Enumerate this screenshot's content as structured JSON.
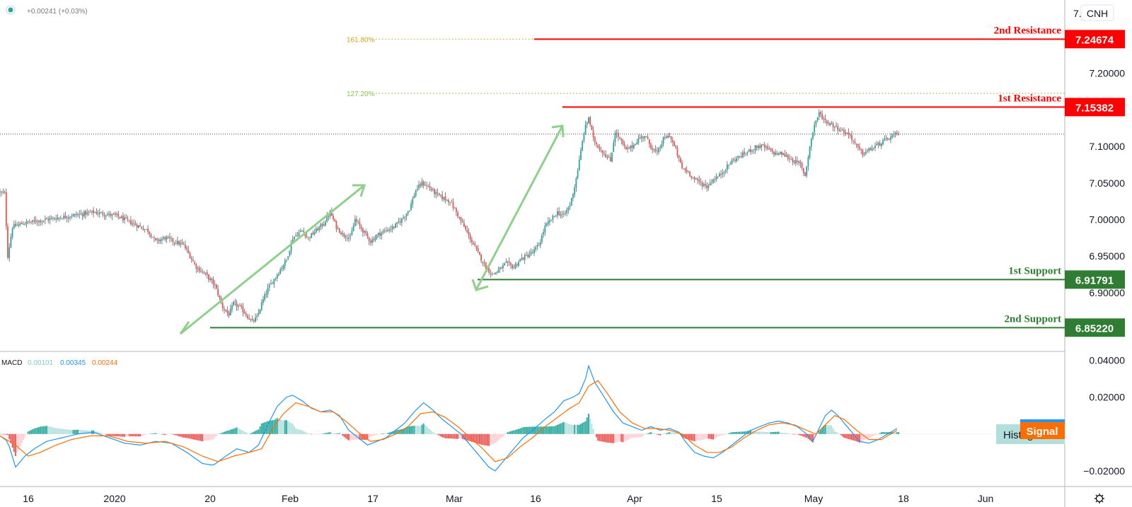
{
  "header": {
    "status_dot_color": "#26a69a",
    "change_text": "+0.00241 (+0.03%)"
  },
  "symbol_label": "CNH",
  "macd_panel": {
    "label": "MACD",
    "hist_value": "0.00101",
    "macd_value": "0.00345",
    "signal_value": "0.00244",
    "hist_tag": "Histogram",
    "signal_tag": "Signal",
    "colors": {
      "hist": "#7ecec6",
      "macd": "#2196f3",
      "signal": "#ff6d00"
    }
  },
  "settings_icon": "gear-icon",
  "chart_data": [
    {
      "type": "candlestick",
      "price_axis": {
        "ticks": [
          "7.20000",
          "7.15000",
          "7.10000",
          "7.05000",
          "7.00000",
          "6.95000",
          "6.90000"
        ],
        "top_partial_label": "7.",
        "ylim": [
          6.838,
          7.278
        ]
      },
      "x_axis": {
        "ticks": [
          "16",
          "2020",
          "20",
          "Feb",
          "17",
          "Mar",
          "16",
          "Apr",
          "15",
          "May",
          "18",
          "Jun"
        ]
      },
      "levels": [
        {
          "name": "2nd Resistance",
          "value": "7.24674",
          "price": 7.24674,
          "color": "#ff0000"
        },
        {
          "name": "1st Resistance",
          "value": "7.15382",
          "price": 7.15382,
          "color": "#ff0000"
        },
        {
          "name": "1st Support",
          "value": "6.91791",
          "price": 6.91791,
          "color": "#2e7d32"
        },
        {
          "name": "2nd Support",
          "value": "6.85220",
          "price": 6.8522,
          "color": "#2e7d32"
        }
      ],
      "fibonacci": [
        {
          "label": "161.80%",
          "price": 7.24674,
          "color": "#d4a017"
        },
        {
          "label": "127.20%",
          "price": 7.1725,
          "color": "#8bc34a"
        }
      ],
      "current_price": 7.117,
      "close_path": [
        [
          0,
          7.037
        ],
        [
          3,
          7.035
        ],
        [
          5,
          6.95
        ],
        [
          8,
          6.99
        ],
        [
          15,
          6.995
        ],
        [
          30,
          7.0
        ],
        [
          45,
          7.005
        ],
        [
          60,
          7.01
        ],
        [
          75,
          7.005
        ],
        [
          85,
          6.995
        ],
        [
          95,
          6.985
        ],
        [
          100,
          6.97
        ],
        [
          106,
          6.975
        ],
        [
          112,
          6.97
        ],
        [
          118,
          6.965
        ],
        [
          122,
          6.95
        ],
        [
          126,
          6.935
        ],
        [
          132,
          6.925
        ],
        [
          138,
          6.91
        ],
        [
          143,
          6.88
        ],
        [
          147,
          6.87
        ],
        [
          150,
          6.885
        ],
        [
          154,
          6.88
        ],
        [
          158,
          6.87
        ],
        [
          162,
          6.86
        ],
        [
          165,
          6.866
        ],
        [
          168,
          6.885
        ],
        [
          172,
          6.905
        ],
        [
          178,
          6.925
        ],
        [
          184,
          6.945
        ],
        [
          188,
          6.975
        ],
        [
          194,
          6.985
        ],
        [
          198,
          6.975
        ],
        [
          203,
          6.985
        ],
        [
          208,
          6.995
        ],
        [
          212,
          7.01
        ],
        [
          216,
          6.99
        ],
        [
          220,
          6.98
        ],
        [
          225,
          6.975
        ],
        [
          228,
          7.0
        ],
        [
          233,
          6.985
        ],
        [
          238,
          6.97
        ],
        [
          243,
          6.98
        ],
        [
          248,
          6.985
        ],
        [
          253,
          6.99
        ],
        [
          258,
          7.0
        ],
        [
          263,
          7.015
        ],
        [
          267,
          7.04
        ],
        [
          271,
          7.05
        ],
        [
          275,
          7.045
        ],
        [
          280,
          7.035
        ],
        [
          284,
          7.03
        ],
        [
          289,
          7.025
        ],
        [
          293,
          7.01
        ],
        [
          298,
          6.99
        ],
        [
          303,
          6.97
        ],
        [
          308,
          6.95
        ],
        [
          312,
          6.935
        ],
        [
          316,
          6.925
        ],
        [
          320,
          6.93
        ],
        [
          325,
          6.94
        ],
        [
          330,
          6.935
        ],
        [
          334,
          6.945
        ],
        [
          338,
          6.95
        ],
        [
          342,
          6.955
        ],
        [
          346,
          6.965
        ],
        [
          350,
          6.99
        ],
        [
          354,
          7.0
        ],
        [
          358,
          7.01
        ],
        [
          362,
          7.005
        ],
        [
          366,
          7.02
        ],
        [
          369,
          7.045
        ],
        [
          372,
          7.08
        ],
        [
          375,
          7.12
        ],
        [
          378,
          7.14
        ],
        [
          381,
          7.11
        ],
        [
          384,
          7.1
        ],
        [
          388,
          7.09
        ],
        [
          392,
          7.08
        ],
        [
          395,
          7.12
        ],
        [
          398,
          7.11
        ],
        [
          402,
          7.095
        ],
        [
          406,
          7.1
        ],
        [
          410,
          7.11
        ],
        [
          414,
          7.115
        ],
        [
          418,
          7.1
        ],
        [
          422,
          7.09
        ],
        [
          426,
          7.11
        ],
        [
          430,
          7.115
        ],
        [
          434,
          7.095
        ],
        [
          438,
          7.07
        ],
        [
          442,
          7.065
        ],
        [
          446,
          7.055
        ],
        [
          450,
          7.05
        ],
        [
          454,
          7.045
        ],
        [
          458,
          7.055
        ],
        [
          462,
          7.06
        ],
        [
          466,
          7.07
        ],
        [
          470,
          7.08
        ],
        [
          474,
          7.085
        ],
        [
          478,
          7.09
        ],
        [
          482,
          7.095
        ],
        [
          486,
          7.1
        ],
        [
          490,
          7.1
        ],
        [
          494,
          7.095
        ],
        [
          498,
          7.09
        ],
        [
          502,
          7.09
        ],
        [
          506,
          7.085
        ],
        [
          510,
          7.08
        ],
        [
          514,
          7.075
        ],
        [
          517,
          7.06
        ],
        [
          520,
          7.1
        ],
        [
          523,
          7.13
        ],
        [
          526,
          7.145
        ],
        [
          530,
          7.135
        ],
        [
          534,
          7.13
        ],
        [
          538,
          7.125
        ],
        [
          542,
          7.12
        ],
        [
          546,
          7.115
        ],
        [
          550,
          7.1
        ],
        [
          554,
          7.09
        ],
        [
          558,
          7.095
        ],
        [
          562,
          7.1
        ],
        [
          566,
          7.105
        ],
        [
          570,
          7.11
        ],
        [
          574,
          7.115
        ],
        [
          577,
          7.117
        ]
      ]
    },
    {
      "type": "macd",
      "axis": {
        "ticks": [
          "0.04000",
          "0.02000",
          "0.00000",
          "−0.02000"
        ],
        "ylim": [
          -0.0235,
          0.0425
        ]
      },
      "macd_path": [
        [
          0,
          -0.001
        ],
        [
          5,
          -0.004
        ],
        [
          10,
          -0.018
        ],
        [
          16,
          -0.012
        ],
        [
          22,
          -0.008
        ],
        [
          30,
          -0.004
        ],
        [
          40,
          -0.002
        ],
        [
          50,
          0.0
        ],
        [
          60,
          0.001
        ],
        [
          70,
          -0.002
        ],
        [
          80,
          -0.005
        ],
        [
          90,
          -0.006
        ],
        [
          100,
          -0.004
        ],
        [
          110,
          -0.005
        ],
        [
          120,
          -0.01
        ],
        [
          130,
          -0.016
        ],
        [
          137,
          -0.017
        ],
        [
          145,
          -0.012
        ],
        [
          152,
          -0.008
        ],
        [
          160,
          -0.01
        ],
        [
          166,
          -0.006
        ],
        [
          172,
          0.005
        ],
        [
          178,
          0.015
        ],
        [
          184,
          0.02
        ],
        [
          188,
          0.021
        ],
        [
          194,
          0.018
        ],
        [
          200,
          0.014
        ],
        [
          206,
          0.012
        ],
        [
          212,
          0.013
        ],
        [
          218,
          0.01
        ],
        [
          224,
          0.002
        ],
        [
          230,
          -0.002
        ],
        [
          236,
          -0.006
        ],
        [
          242,
          -0.004
        ],
        [
          248,
          -0.002
        ],
        [
          254,
          0.002
        ],
        [
          260,
          0.006
        ],
        [
          266,
          0.012
        ],
        [
          272,
          0.017
        ],
        [
          278,
          0.013
        ],
        [
          284,
          0.008
        ],
        [
          290,
          0.004
        ],
        [
          296,
          0.0
        ],
        [
          302,
          -0.006
        ],
        [
          308,
          -0.012
        ],
        [
          314,
          -0.018
        ],
        [
          318,
          -0.02
        ],
        [
          324,
          -0.014
        ],
        [
          330,
          -0.008
        ],
        [
          336,
          -0.002
        ],
        [
          342,
          0.002
        ],
        [
          350,
          0.008
        ],
        [
          356,
          0.012
        ],
        [
          362,
          0.018
        ],
        [
          368,
          0.02
        ],
        [
          372,
          0.022
        ],
        [
          376,
          0.03
        ],
        [
          378,
          0.037
        ],
        [
          382,
          0.028
        ],
        [
          388,
          0.02
        ],
        [
          394,
          0.012
        ],
        [
          400,
          0.006
        ],
        [
          406,
          0.004
        ],
        [
          412,
          0.002
        ],
        [
          418,
          0.004
        ],
        [
          424,
          0.002
        ],
        [
          430,
          0.003
        ],
        [
          436,
          0.001
        ],
        [
          440,
          -0.004
        ],
        [
          446,
          -0.01
        ],
        [
          452,
          -0.012
        ],
        [
          458,
          -0.013
        ],
        [
          464,
          -0.01
        ],
        [
          470,
          -0.006
        ],
        [
          476,
          -0.002
        ],
        [
          482,
          0.002
        ],
        [
          488,
          0.004
        ],
        [
          494,
          0.006
        ],
        [
          500,
          0.007
        ],
        [
          506,
          0.006
        ],
        [
          512,
          0.004
        ],
        [
          518,
          0.0
        ],
        [
          522,
          -0.004
        ],
        [
          526,
          0.003
        ],
        [
          530,
          0.01
        ],
        [
          534,
          0.013
        ],
        [
          538,
          0.01
        ],
        [
          542,
          0.006
        ],
        [
          548,
          0.0
        ],
        [
          552,
          -0.004
        ],
        [
          558,
          -0.005
        ],
        [
          564,
          -0.003
        ],
        [
          570,
          0.0
        ],
        [
          576,
          0.003
        ]
      ],
      "signal_path": [
        [
          0,
          -0.001
        ],
        [
          10,
          -0.006
        ],
        [
          18,
          -0.012
        ],
        [
          26,
          -0.01
        ],
        [
          36,
          -0.006
        ],
        [
          46,
          -0.003
        ],
        [
          58,
          -0.001
        ],
        [
          70,
          -0.001
        ],
        [
          82,
          -0.004
        ],
        [
          94,
          -0.005
        ],
        [
          106,
          -0.004
        ],
        [
          118,
          -0.007
        ],
        [
          130,
          -0.012
        ],
        [
          140,
          -0.015
        ],
        [
          150,
          -0.012
        ],
        [
          160,
          -0.01
        ],
        [
          168,
          -0.008
        ],
        [
          176,
          0.004
        ],
        [
          182,
          0.011
        ],
        [
          190,
          0.017
        ],
        [
          198,
          0.015
        ],
        [
          206,
          0.012
        ],
        [
          214,
          0.012
        ],
        [
          222,
          0.007
        ],
        [
          230,
          0.001
        ],
        [
          238,
          -0.004
        ],
        [
          246,
          -0.003
        ],
        [
          254,
          0.0
        ],
        [
          262,
          0.004
        ],
        [
          270,
          0.011
        ],
        [
          278,
          0.012
        ],
        [
          286,
          0.009
        ],
        [
          294,
          0.004
        ],
        [
          302,
          -0.002
        ],
        [
          310,
          -0.008
        ],
        [
          318,
          -0.015
        ],
        [
          326,
          -0.013
        ],
        [
          334,
          -0.007
        ],
        [
          342,
          -0.002
        ],
        [
          350,
          0.004
        ],
        [
          358,
          0.009
        ],
        [
          366,
          0.014
        ],
        [
          372,
          0.017
        ],
        [
          378,
          0.026
        ],
        [
          384,
          0.029
        ],
        [
          390,
          0.022
        ],
        [
          398,
          0.012
        ],
        [
          406,
          0.006
        ],
        [
          414,
          0.003
        ],
        [
          422,
          0.003
        ],
        [
          430,
          0.002
        ],
        [
          438,
          0.0
        ],
        [
          446,
          -0.006
        ],
        [
          454,
          -0.01
        ],
        [
          462,
          -0.01
        ],
        [
          470,
          -0.007
        ],
        [
          478,
          -0.002
        ],
        [
          486,
          0.002
        ],
        [
          494,
          0.005
        ],
        [
          502,
          0.006
        ],
        [
          510,
          0.005
        ],
        [
          518,
          0.002
        ],
        [
          524,
          0.0
        ],
        [
          530,
          0.005
        ],
        [
          536,
          0.01
        ],
        [
          542,
          0.008
        ],
        [
          550,
          0.002
        ],
        [
          558,
          -0.003
        ],
        [
          566,
          -0.003
        ],
        [
          576,
          0.002
        ]
      ]
    }
  ]
}
